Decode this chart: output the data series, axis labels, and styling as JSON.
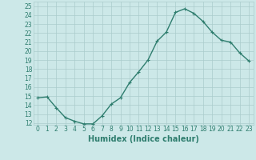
{
  "x": [
    0,
    1,
    2,
    3,
    4,
    5,
    6,
    7,
    8,
    9,
    10,
    11,
    12,
    13,
    14,
    15,
    16,
    17,
    18,
    19,
    20,
    21,
    22,
    23
  ],
  "y": [
    14.8,
    14.9,
    13.7,
    12.6,
    12.2,
    11.9,
    11.9,
    12.8,
    14.1,
    14.8,
    16.5,
    17.7,
    19.0,
    21.1,
    22.1,
    24.3,
    24.7,
    24.2,
    23.3,
    22.1,
    21.2,
    21.0,
    19.8,
    18.9
  ],
  "line_color": "#2e7d6e",
  "marker": "+",
  "marker_size": 3,
  "background_color": "#cce8e8",
  "grid_color": "#aacccc",
  "xlabel": "Humidex (Indice chaleur)",
  "xlim": [
    -0.5,
    23.5
  ],
  "ylim": [
    11.8,
    25.5
  ],
  "yticks": [
    12,
    13,
    14,
    15,
    16,
    17,
    18,
    19,
    20,
    21,
    22,
    23,
    24,
    25
  ],
  "xticks": [
    0,
    1,
    2,
    3,
    4,
    5,
    6,
    7,
    8,
    9,
    10,
    11,
    12,
    13,
    14,
    15,
    16,
    17,
    18,
    19,
    20,
    21,
    22,
    23
  ],
  "tick_label_size": 5.5,
  "xlabel_size": 7,
  "line_width": 1.0,
  "marker_edge_width": 0.8
}
